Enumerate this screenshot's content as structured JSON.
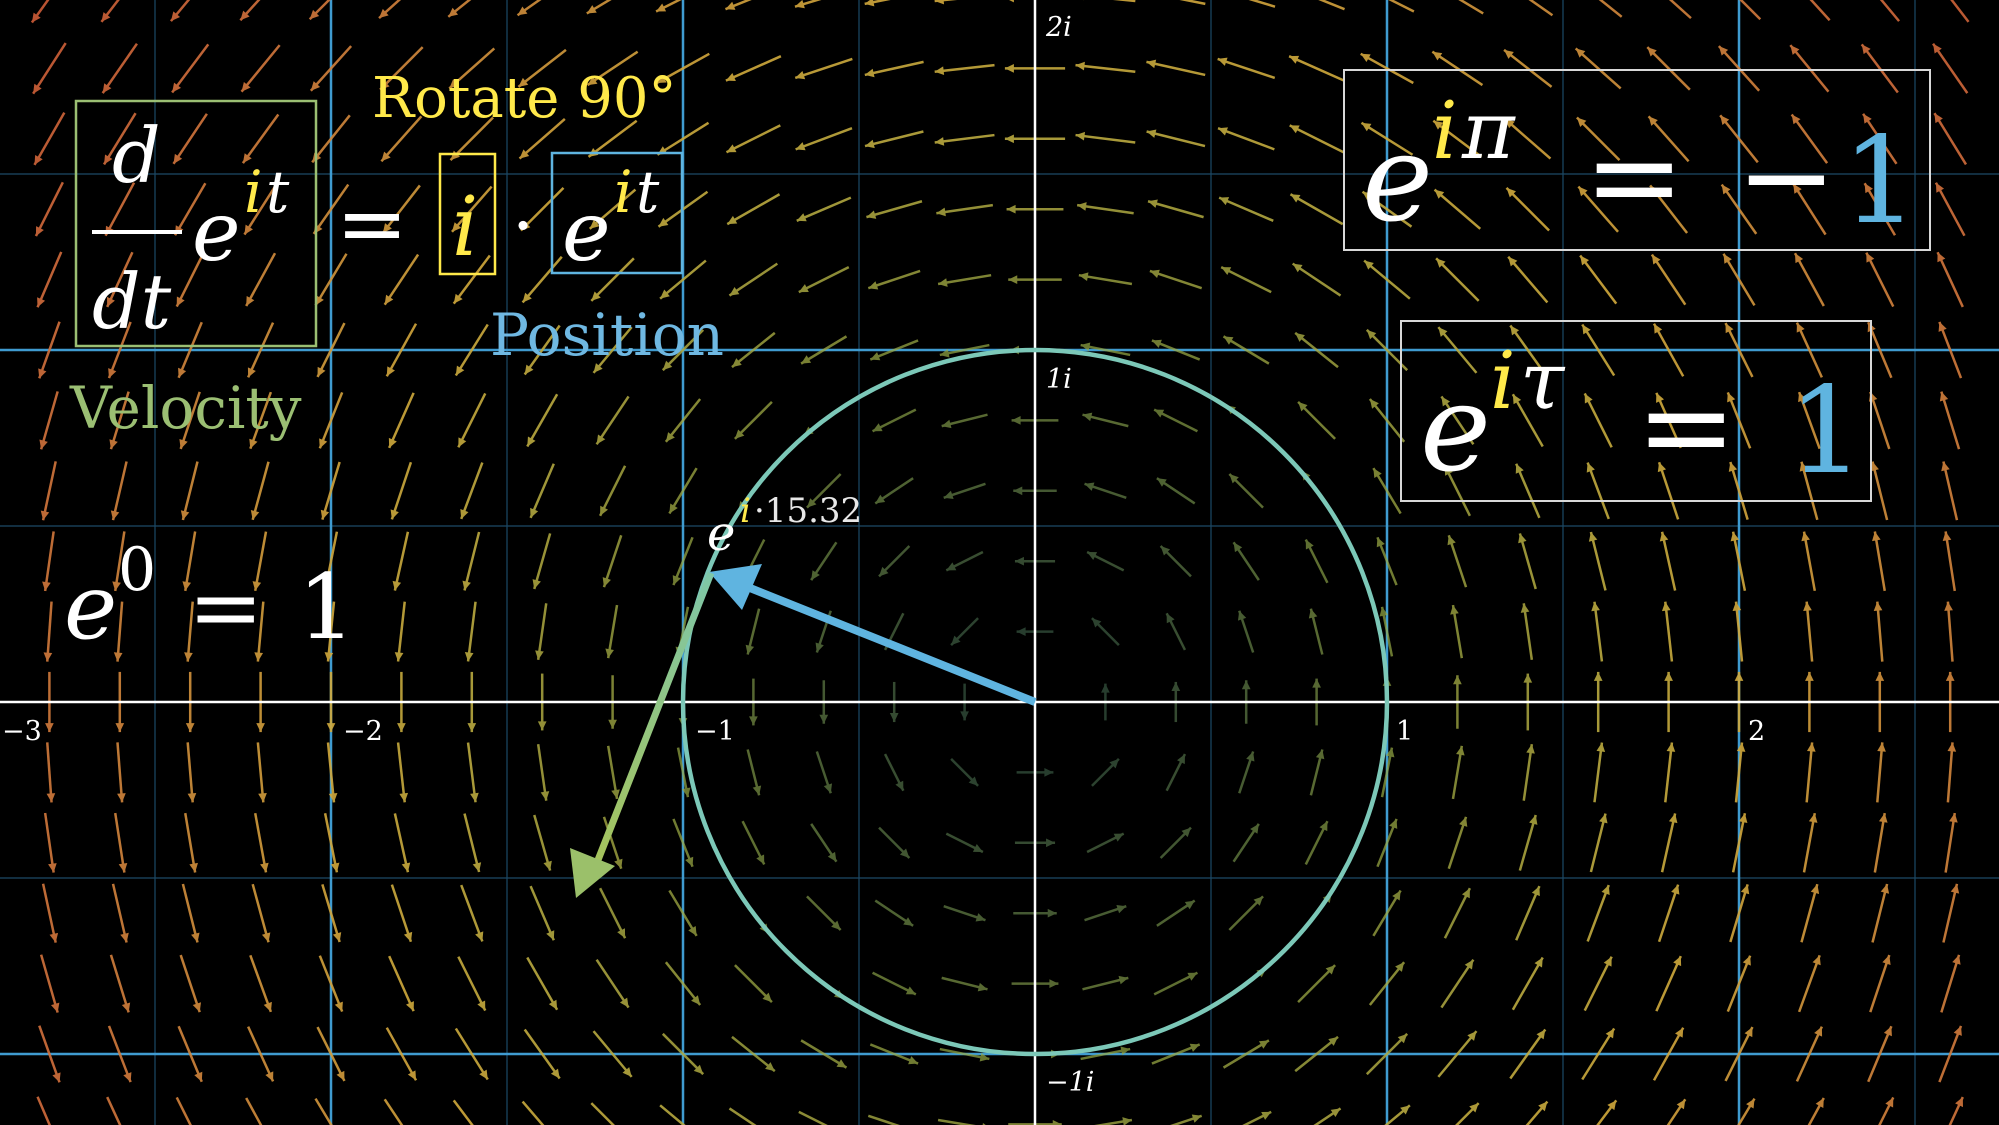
{
  "axis_labels": {
    "x": [
      "−3",
      "−2",
      "−1",
      "1",
      "2"
    ],
    "y_top": "2i",
    "y_one": "1i",
    "y_neg": "−1i"
  },
  "formula": {
    "d": "d",
    "dt": "dt",
    "e": "e",
    "it": "it",
    "eq": "=",
    "i": "i",
    "dot": "·",
    "rotate_label": "Rotate 90°",
    "position_label": "Position",
    "velocity_label": "Velocity"
  },
  "e0": {
    "base": "e",
    "exp": "0",
    "eq": "=",
    "rhs": "1"
  },
  "point_label": {
    "base": "e",
    "i": "i",
    "value": "·15.32"
  },
  "euler_pi": {
    "base": "e",
    "i": "i",
    "sym": "π",
    "eq": "=",
    "minus": "−",
    "rhs": "1"
  },
  "euler_tau": {
    "base": "e",
    "i": "i",
    "sym": "τ",
    "eq": "=",
    "rhs": "1"
  },
  "colors": {
    "background": "#000000",
    "grid_major": "#3f9bd0",
    "grid_minor": "#1c4a66",
    "axis": "#ffffff",
    "circle": "#7cc8b8",
    "position": "#5fb4e0",
    "velocity": "#9bc06a",
    "yellow": "#ffe94a",
    "green_text": "#9bbf73",
    "white": "#ffffff"
  },
  "plane": {
    "t": 15.32,
    "grid_step": 1,
    "x_range": [
      -3,
      2.85
    ],
    "y_range": [
      -1.2,
      2
    ]
  }
}
